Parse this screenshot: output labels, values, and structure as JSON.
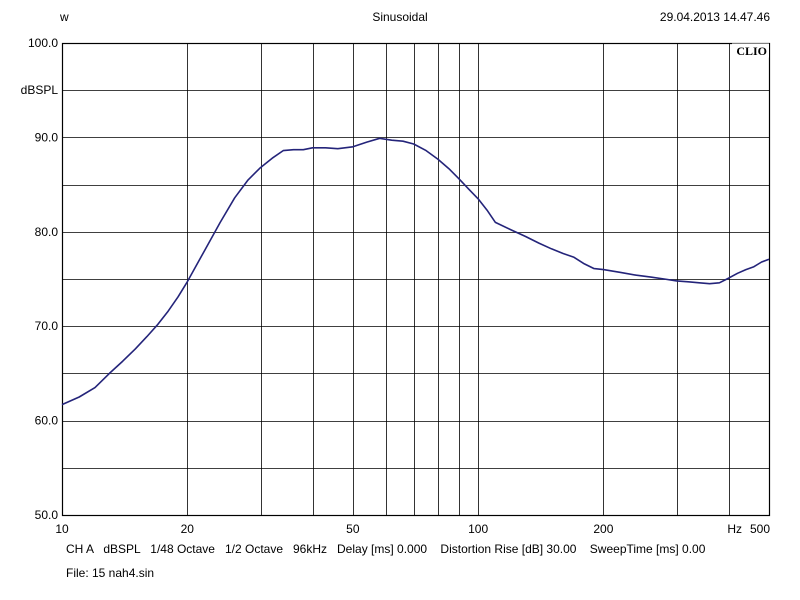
{
  "header": {
    "left": "w",
    "center": "Sinusoidal",
    "right": "29.04.2013 14.47.46"
  },
  "brand": "CLIO",
  "footer": {
    "settings": "CH A   dBSPL   1/48 Octave   1/2 Octave   96kHz   Delay [ms] 0.000    Distortion Rise [dB] 30.00    SweepTime [ms] 0.00",
    "file": "File: 15 nah4.sin"
  },
  "colors": {
    "curve": "#24247a",
    "grid": "#000000",
    "background": "#ffffff"
  },
  "chart_data": {
    "type": "line",
    "title": "Sinusoidal",
    "ylabel": "dBSPL",
    "xlabel": "Hz",
    "xscale": "log",
    "xlim": [
      10,
      500
    ],
    "ylim": [
      50,
      100
    ],
    "x_ticks": [
      10,
      20,
      50,
      100,
      200,
      500
    ],
    "x_tick_labels": [
      "10",
      "20",
      "50",
      "100",
      "200",
      "500"
    ],
    "x_grid": [
      20,
      30,
      40,
      50,
      60,
      70,
      80,
      90,
      100,
      200,
      300,
      400
    ],
    "y_ticks": [
      50,
      60,
      70,
      80,
      90,
      100
    ],
    "y_tick_labels": [
      "50.0",
      "60.0",
      "70.0",
      "80.0",
      "90.0",
      "100.0"
    ],
    "y_grid": [
      55,
      60,
      65,
      70,
      75,
      80,
      85,
      90,
      95
    ],
    "grid": true,
    "series": [
      {
        "x": [
          10,
          11,
          12,
          13,
          14,
          15,
          16,
          17,
          18,
          19,
          20,
          22,
          24,
          26,
          28,
          30,
          32,
          34,
          36,
          38,
          40,
          43,
          46,
          50,
          54,
          58,
          62,
          66,
          70,
          75,
          80,
          85,
          90,
          95,
          100,
          105,
          110,
          120,
          130,
          140,
          150,
          160,
          170,
          180,
          190,
          200,
          220,
          240,
          260,
          280,
          300,
          320,
          340,
          360,
          380,
          400,
          420,
          440,
          460,
          480,
          500
        ],
        "y": [
          61.7,
          62.5,
          63.5,
          65.0,
          66.3,
          67.6,
          68.9,
          70.2,
          71.6,
          73.1,
          74.7,
          78.0,
          81.0,
          83.6,
          85.5,
          86.8,
          87.8,
          88.6,
          88.7,
          88.7,
          88.9,
          88.9,
          88.8,
          89.0,
          89.5,
          89.9,
          89.7,
          89.6,
          89.3,
          88.6,
          87.7,
          86.7,
          85.6,
          84.5,
          83.5,
          82.3,
          81.0,
          80.2,
          79.5,
          78.8,
          78.2,
          77.7,
          77.3,
          76.6,
          76.1,
          76.0,
          75.7,
          75.4,
          75.2,
          75.0,
          74.8,
          74.7,
          74.6,
          74.5,
          74.6,
          75.1,
          75.6,
          76.0,
          76.3,
          76.8,
          77.1
        ]
      }
    ]
  }
}
